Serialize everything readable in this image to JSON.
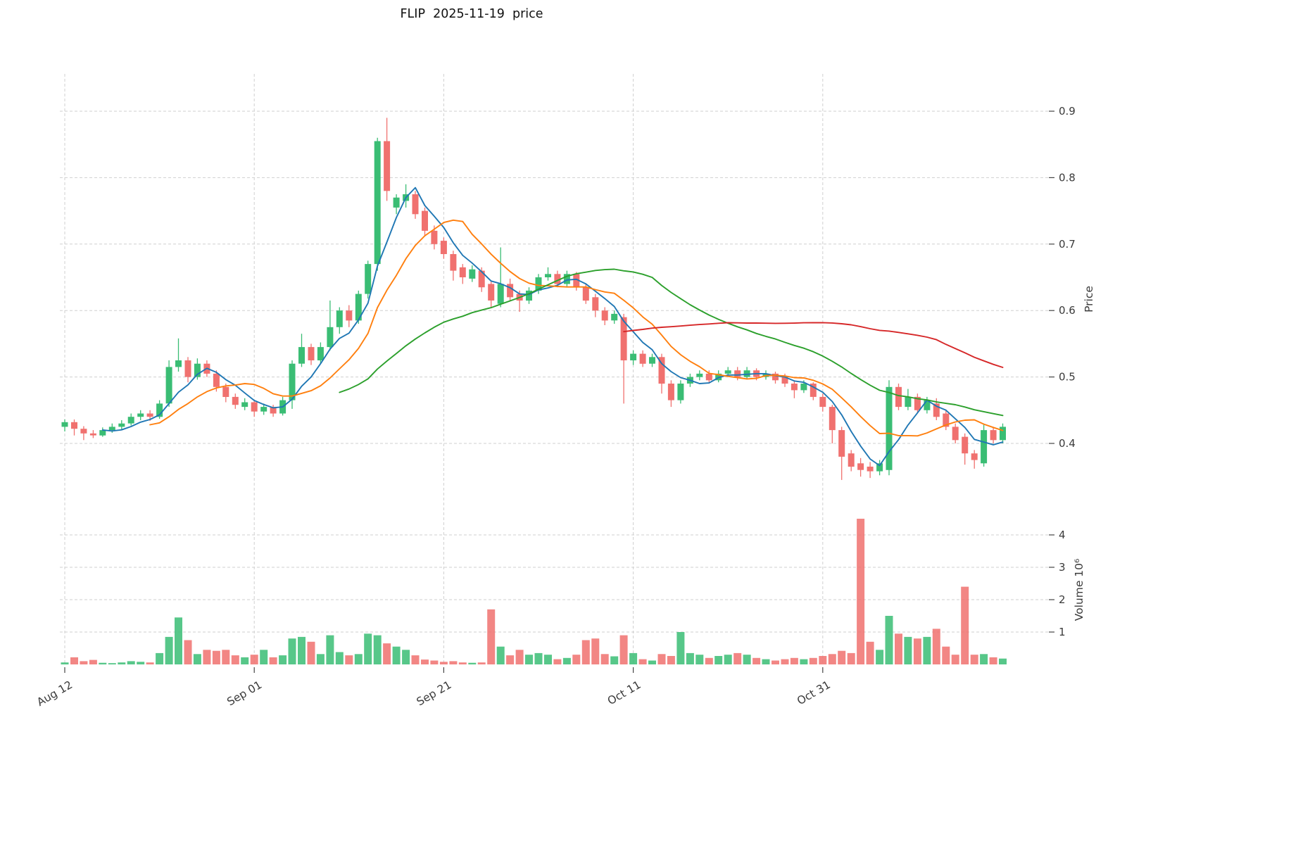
{
  "chart_data": {
    "type": "candlestick",
    "title": "FLIP  2025-11-19  price",
    "date_range": {
      "start": "2025-08-12",
      "end": "2025-11-19",
      "frequency": "daily"
    },
    "grid": "dashed",
    "legend": "none",
    "price_axis": {
      "label": "Price",
      "side": "right",
      "ticks": [
        0.4,
        0.5,
        0.6,
        0.7,
        0.8,
        0.9
      ],
      "ylim": [
        0.33,
        0.935
      ]
    },
    "volume_axis": {
      "label": "Volume  10⁶",
      "side": "right",
      "unit": "millions",
      "ticks": [
        1,
        2,
        3,
        4
      ]
    },
    "x_axis": {
      "ticks": [
        {
          "index": 0,
          "label": "Aug 12"
        },
        {
          "index": 20,
          "label": "Sep 01"
        },
        {
          "index": 40,
          "label": "Sep 21"
        },
        {
          "index": 60,
          "label": "Oct 11"
        },
        {
          "index": 80,
          "label": "Oct 31"
        }
      ]
    },
    "colors": {
      "up": "#3abd74",
      "down": "#f0716f"
    },
    "moving_averages": [
      {
        "name": "MA5",
        "window": 5,
        "color": "#1f77b4"
      },
      {
        "name": "MA10",
        "window": 10,
        "color": "#ff7f0e"
      },
      {
        "name": "MA30",
        "window": 30,
        "color": "#2ca02c"
      },
      {
        "name": "MA60",
        "window": 60,
        "color": "#d62728"
      }
    ],
    "ohlc": [
      [
        0.425,
        0.436,
        0.418,
        0.432
      ],
      [
        0.432,
        0.436,
        0.412,
        0.422
      ],
      [
        0.422,
        0.426,
        0.405,
        0.415
      ],
      [
        0.415,
        0.42,
        0.408,
        0.412
      ],
      [
        0.412,
        0.424,
        0.41,
        0.42
      ],
      [
        0.42,
        0.43,
        0.416,
        0.425
      ],
      [
        0.425,
        0.435,
        0.421,
        0.43
      ],
      [
        0.43,
        0.445,
        0.427,
        0.44
      ],
      [
        0.44,
        0.45,
        0.435,
        0.445
      ],
      [
        0.445,
        0.45,
        0.434,
        0.44
      ],
      [
        0.44,
        0.465,
        0.437,
        0.46
      ],
      [
        0.46,
        0.525,
        0.455,
        0.515
      ],
      [
        0.515,
        0.558,
        0.508,
        0.525
      ],
      [
        0.525,
        0.53,
        0.492,
        0.5
      ],
      [
        0.5,
        0.528,
        0.496,
        0.52
      ],
      [
        0.52,
        0.525,
        0.5,
        0.505
      ],
      [
        0.505,
        0.51,
        0.478,
        0.485
      ],
      [
        0.485,
        0.49,
        0.462,
        0.47
      ],
      [
        0.47,
        0.475,
        0.452,
        0.458
      ],
      [
        0.455,
        0.468,
        0.45,
        0.462
      ],
      [
        0.462,
        0.465,
        0.44,
        0.448
      ],
      [
        0.448,
        0.46,
        0.443,
        0.455
      ],
      [
        0.455,
        0.458,
        0.44,
        0.445
      ],
      [
        0.445,
        0.47,
        0.442,
        0.465
      ],
      [
        0.465,
        0.525,
        0.452,
        0.52
      ],
      [
        0.52,
        0.565,
        0.515,
        0.545
      ],
      [
        0.545,
        0.55,
        0.518,
        0.525
      ],
      [
        0.525,
        0.552,
        0.52,
        0.545
      ],
      [
        0.545,
        0.615,
        0.54,
        0.575
      ],
      [
        0.575,
        0.605,
        0.565,
        0.6
      ],
      [
        0.6,
        0.608,
        0.575,
        0.585
      ],
      [
        0.585,
        0.63,
        0.58,
        0.625
      ],
      [
        0.625,
        0.675,
        0.618,
        0.67
      ],
      [
        0.67,
        0.86,
        0.66,
        0.855
      ],
      [
        0.855,
        0.89,
        0.765,
        0.78
      ],
      [
        0.755,
        0.775,
        0.745,
        0.77
      ],
      [
        0.765,
        0.79,
        0.755,
        0.775
      ],
      [
        0.775,
        0.78,
        0.738,
        0.745
      ],
      [
        0.75,
        0.755,
        0.712,
        0.72
      ],
      [
        0.72,
        0.728,
        0.692,
        0.7
      ],
      [
        0.705,
        0.71,
        0.678,
        0.685
      ],
      [
        0.685,
        0.69,
        0.645,
        0.66
      ],
      [
        0.665,
        0.67,
        0.64,
        0.65
      ],
      [
        0.648,
        0.668,
        0.643,
        0.662
      ],
      [
        0.66,
        0.665,
        0.628,
        0.635
      ],
      [
        0.64,
        0.645,
        0.605,
        0.615
      ],
      [
        0.61,
        0.695,
        0.605,
        0.64
      ],
      [
        0.64,
        0.648,
        0.615,
        0.62
      ],
      [
        0.625,
        0.63,
        0.598,
        0.615
      ],
      [
        0.615,
        0.635,
        0.61,
        0.63
      ],
      [
        0.63,
        0.655,
        0.625,
        0.65
      ],
      [
        0.65,
        0.665,
        0.645,
        0.655
      ],
      [
        0.655,
        0.66,
        0.635,
        0.64
      ],
      [
        0.64,
        0.66,
        0.636,
        0.655
      ],
      [
        0.655,
        0.658,
        0.63,
        0.635
      ],
      [
        0.635,
        0.64,
        0.61,
        0.615
      ],
      [
        0.62,
        0.625,
        0.59,
        0.6
      ],
      [
        0.6,
        0.605,
        0.578,
        0.585
      ],
      [
        0.585,
        0.6,
        0.58,
        0.595
      ],
      [
        0.59,
        0.595,
        0.46,
        0.525
      ],
      [
        0.525,
        0.54,
        0.518,
        0.535
      ],
      [
        0.535,
        0.54,
        0.515,
        0.52
      ],
      [
        0.52,
        0.535,
        0.515,
        0.53
      ],
      [
        0.53,
        0.535,
        0.475,
        0.49
      ],
      [
        0.49,
        0.495,
        0.455,
        0.465
      ],
      [
        0.465,
        0.495,
        0.46,
        0.49
      ],
      [
        0.49,
        0.505,
        0.485,
        0.5
      ],
      [
        0.5,
        0.51,
        0.495,
        0.505
      ],
      [
        0.505,
        0.51,
        0.49,
        0.495
      ],
      [
        0.495,
        0.51,
        0.492,
        0.505
      ],
      [
        0.505,
        0.515,
        0.5,
        0.51
      ],
      [
        0.51,
        0.515,
        0.495,
        0.5
      ],
      [
        0.5,
        0.515,
        0.497,
        0.51
      ],
      [
        0.51,
        0.513,
        0.495,
        0.5
      ],
      [
        0.5,
        0.51,
        0.496,
        0.505
      ],
      [
        0.505,
        0.508,
        0.49,
        0.495
      ],
      [
        0.5,
        0.505,
        0.485,
        0.49
      ],
      [
        0.49,
        0.495,
        0.468,
        0.48
      ],
      [
        0.48,
        0.495,
        0.476,
        0.49
      ],
      [
        0.49,
        0.492,
        0.465,
        0.47
      ],
      [
        0.47,
        0.475,
        0.448,
        0.455
      ],
      [
        0.455,
        0.458,
        0.4,
        0.42
      ],
      [
        0.42,
        0.425,
        0.345,
        0.38
      ],
      [
        0.385,
        0.39,
        0.358,
        0.365
      ],
      [
        0.37,
        0.378,
        0.35,
        0.36
      ],
      [
        0.365,
        0.372,
        0.348,
        0.358
      ],
      [
        0.358,
        0.375,
        0.352,
        0.37
      ],
      [
        0.36,
        0.495,
        0.352,
        0.485
      ],
      [
        0.485,
        0.49,
        0.45,
        0.455
      ],
      [
        0.455,
        0.482,
        0.45,
        0.47
      ],
      [
        0.47,
        0.475,
        0.445,
        0.45
      ],
      [
        0.45,
        0.47,
        0.445,
        0.465
      ],
      [
        0.46,
        0.468,
        0.435,
        0.44
      ],
      [
        0.445,
        0.45,
        0.42,
        0.425
      ],
      [
        0.425,
        0.43,
        0.4,
        0.405
      ],
      [
        0.41,
        0.415,
        0.368,
        0.385
      ],
      [
        0.385,
        0.39,
        0.362,
        0.375
      ],
      [
        0.37,
        0.428,
        0.365,
        0.42
      ],
      [
        0.42,
        0.425,
        0.4,
        0.405
      ],
      [
        0.405,
        0.43,
        0.4,
        0.425
      ]
    ],
    "volume": [
      0.06,
      0.22,
      0.1,
      0.14,
      0.05,
      0.04,
      0.06,
      0.1,
      0.08,
      0.06,
      0.35,
      0.85,
      1.45,
      0.75,
      0.32,
      0.45,
      0.42,
      0.45,
      0.28,
      0.22,
      0.3,
      0.45,
      0.22,
      0.28,
      0.8,
      0.85,
      0.7,
      0.32,
      0.9,
      0.38,
      0.28,
      0.32,
      0.95,
      0.9,
      0.65,
      0.55,
      0.45,
      0.28,
      0.15,
      0.12,
      0.08,
      0.1,
      0.06,
      0.05,
      0.06,
      1.7,
      0.55,
      0.28,
      0.45,
      0.3,
      0.35,
      0.3,
      0.16,
      0.2,
      0.3,
      0.75,
      0.8,
      0.32,
      0.25,
      0.9,
      0.35,
      0.16,
      0.12,
      0.32,
      0.26,
      1.0,
      0.35,
      0.3,
      0.2,
      0.26,
      0.3,
      0.35,
      0.3,
      0.2,
      0.16,
      0.12,
      0.16,
      0.2,
      0.16,
      0.2,
      0.26,
      0.32,
      0.42,
      0.35,
      4.5,
      0.7,
      0.45,
      1.5,
      0.95,
      0.85,
      0.8,
      0.85,
      1.1,
      0.55,
      0.3,
      2.4,
      0.3,
      0.32,
      0.22,
      0.18
    ]
  }
}
